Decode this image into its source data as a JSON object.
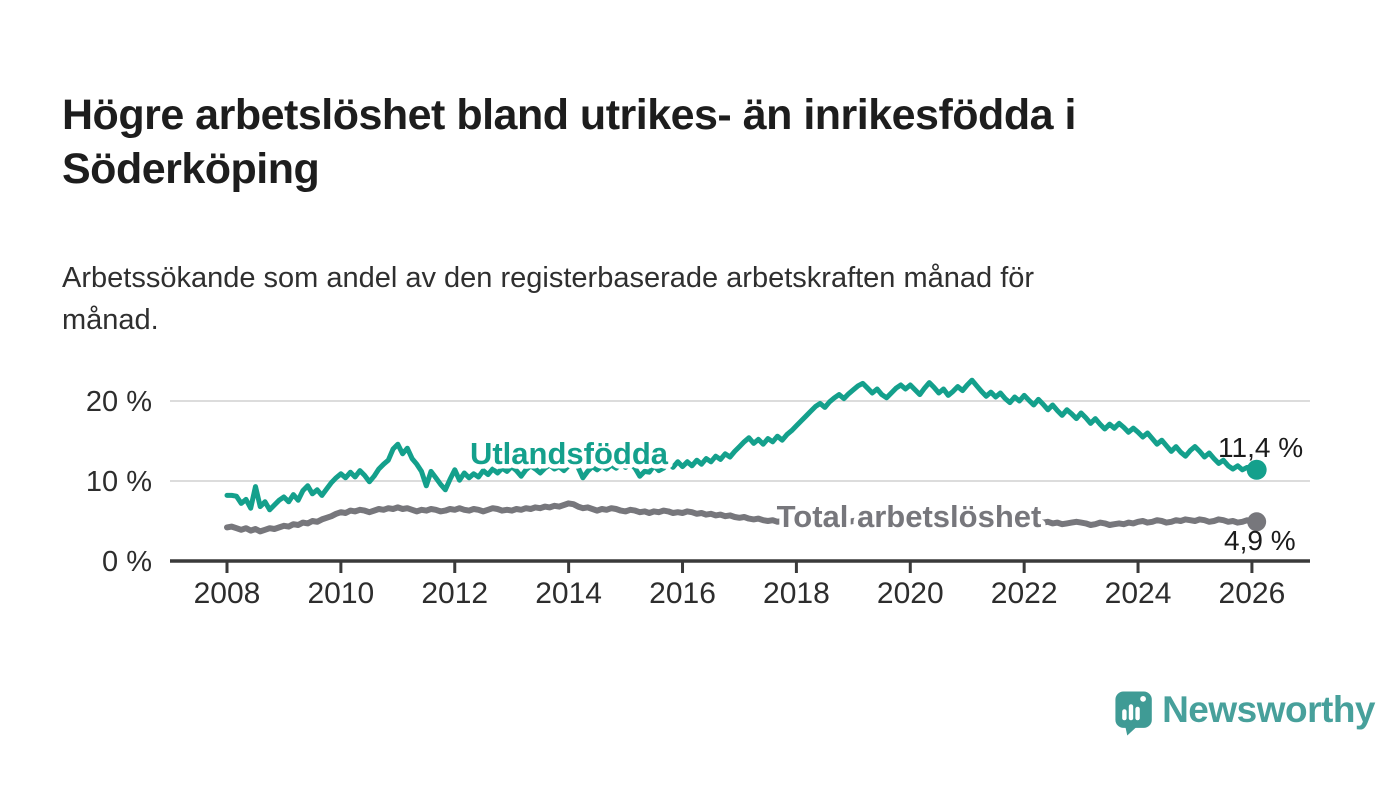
{
  "title": "Högre arbetslöshet bland utrikes- än inrikesfödda i\nSöderköping",
  "subtitle": "Arbetssökande som andel av den registerbaserade arbetskraften månad för\nmånad.",
  "branding": {
    "name": "Newsworthy",
    "icon": "newsworthy-bubble-barchart-icon",
    "icon_color": "#3f9b95",
    "text_color": "#47a09b"
  },
  "chart_data": {
    "type": "line",
    "title": "Högre arbetslöshet bland utrikes- än inrikesfödda i Söderköping",
    "subtitle": "Arbetssökande som andel av den registerbaserade arbetskraften månad för månad.",
    "x_unit": "month",
    "x_start": "2008-01",
    "x_end": "2026-02",
    "x_tick_labels": [
      "2008",
      "2010",
      "2012",
      "2014",
      "2016",
      "2018",
      "2020",
      "2022",
      "2024",
      "2026"
    ],
    "y_tick_labels": [
      "0 %",
      "10 %",
      "20 %"
    ],
    "y_ticks": [
      0,
      10,
      20
    ],
    "ylim": [
      0,
      25
    ],
    "grid": "horizontal",
    "legend": "inline-labels",
    "axis_color": "#3a3a3a",
    "grid_color": "#dcdcdc",
    "tick_text_color": "#2d2d2d",
    "value_label_color": "#1b1b1b",
    "series": [
      {
        "name": "Utlandsfödda",
        "color": "#14a08c",
        "end_value": 11.4,
        "end_label": "11,4 %",
        "values": [
          8.2,
          8.2,
          8.1,
          7.2,
          7.7,
          6.6,
          9.3,
          6.8,
          7.4,
          6.4,
          7.0,
          7.6,
          8.0,
          7.4,
          8.3,
          7.6,
          8.8,
          9.4,
          8.4,
          8.9,
          8.2,
          9.0,
          9.8,
          10.4,
          10.9,
          10.4,
          11.1,
          10.5,
          11.3,
          10.7,
          9.9,
          10.6,
          11.5,
          12.1,
          12.6,
          14.0,
          14.6,
          13.4,
          14.1,
          12.8,
          12.1,
          11.2,
          9.4,
          11.2,
          10.4,
          9.6,
          8.9,
          10.2,
          11.4,
          10.1,
          11.0,
          10.4,
          10.9,
          10.5,
          11.3,
          10.8,
          11.5,
          11.0,
          11.6,
          11.2,
          11.8,
          11.3,
          10.6,
          11.4,
          11.9,
          11.5,
          11.0,
          11.6,
          12.0,
          11.5,
          11.8,
          11.3,
          11.9,
          12.3,
          11.7,
          10.4,
          11.2,
          11.8,
          11.4,
          11.9,
          11.5,
          12.0,
          11.6,
          12.1,
          11.7,
          12.2,
          11.6,
          10.6,
          11.2,
          11.1,
          11.9,
          11.3,
          11.6,
          12.3,
          11.7,
          12.4,
          11.8,
          12.4,
          11.9,
          12.6,
          12.1,
          12.8,
          12.4,
          13.1,
          12.7,
          13.4,
          13.0,
          13.7,
          14.3,
          14.9,
          15.4,
          14.7,
          15.2,
          14.6,
          15.3,
          14.9,
          15.6,
          15.1,
          15.8,
          16.3,
          16.9,
          17.5,
          18.1,
          18.7,
          19.3,
          19.7,
          19.2,
          19.9,
          20.4,
          20.8,
          20.3,
          20.9,
          21.4,
          21.9,
          22.2,
          21.6,
          21.0,
          21.5,
          20.8,
          20.4,
          21.0,
          21.6,
          22.0,
          21.5,
          22.0,
          21.4,
          20.8,
          21.6,
          22.3,
          21.7,
          21.0,
          21.5,
          20.7,
          21.2,
          21.8,
          21.3,
          22.0,
          22.6,
          21.9,
          21.2,
          20.6,
          21.1,
          20.5,
          21.0,
          20.3,
          19.8,
          20.5,
          20.0,
          20.7,
          20.1,
          19.5,
          20.2,
          19.6,
          18.9,
          19.5,
          18.8,
          18.2,
          18.9,
          18.4,
          17.8,
          18.5,
          17.9,
          17.2,
          17.8,
          17.1,
          16.5,
          17.1,
          16.6,
          17.2,
          16.7,
          16.1,
          16.6,
          16.1,
          15.5,
          16.0,
          15.3,
          14.6,
          15.1,
          14.4,
          13.7,
          14.3,
          13.6,
          13.1,
          13.8,
          14.3,
          13.7,
          13.0,
          13.5,
          12.8,
          12.2,
          12.6,
          11.9,
          11.5,
          11.9,
          11.4,
          11.7,
          11.2,
          11.4
        ]
      },
      {
        "name": "Total arbetslöshet",
        "color": "#77777c",
        "end_value": 4.9,
        "end_label": "4,9 %",
        "values": [
          4.2,
          4.3,
          4.1,
          3.9,
          4.1,
          3.8,
          4.0,
          3.7,
          3.9,
          4.1,
          4.0,
          4.2,
          4.4,
          4.3,
          4.6,
          4.5,
          4.8,
          4.7,
          5.0,
          4.9,
          5.2,
          5.4,
          5.6,
          5.9,
          6.1,
          6.0,
          6.3,
          6.2,
          6.4,
          6.3,
          6.1,
          6.3,
          6.5,
          6.4,
          6.6,
          6.5,
          6.7,
          6.5,
          6.6,
          6.4,
          6.2,
          6.4,
          6.3,
          6.5,
          6.4,
          6.2,
          6.3,
          6.5,
          6.4,
          6.6,
          6.4,
          6.3,
          6.5,
          6.4,
          6.2,
          6.4,
          6.6,
          6.5,
          6.3,
          6.4,
          6.3,
          6.5,
          6.4,
          6.6,
          6.5,
          6.7,
          6.6,
          6.8,
          6.7,
          6.9,
          6.8,
          7.0,
          7.2,
          7.1,
          6.8,
          6.6,
          6.7,
          6.5,
          6.3,
          6.5,
          6.4,
          6.6,
          6.5,
          6.3,
          6.2,
          6.4,
          6.3,
          6.1,
          6.2,
          6.0,
          6.2,
          6.1,
          6.3,
          6.2,
          6.0,
          6.1,
          6.0,
          6.2,
          6.1,
          5.9,
          6.0,
          5.8,
          5.9,
          5.7,
          5.8,
          5.6,
          5.7,
          5.5,
          5.4,
          5.5,
          5.3,
          5.2,
          5.3,
          5.1,
          5.0,
          5.1,
          4.9,
          5.0,
          4.8,
          4.9,
          5.0,
          4.9,
          5.1,
          5.0,
          4.8,
          4.9,
          5.1,
          5.0,
          4.8,
          4.9,
          5.0,
          4.9,
          5.0,
          5.1,
          5.0,
          4.8,
          4.9,
          5.0,
          4.9,
          4.7,
          4.8,
          5.0,
          4.9,
          5.1,
          5.2,
          5.1,
          5.0,
          5.3,
          5.5,
          5.4,
          5.2,
          5.3,
          5.1,
          5.2,
          5.0,
          5.1,
          5.2,
          5.3,
          5.1,
          5.0,
          4.9,
          5.0,
          5.1,
          4.9,
          4.8,
          4.9,
          5.0,
          4.9,
          5.0,
          4.9,
          5.1,
          4.9,
          4.8,
          4.9,
          4.7,
          4.8,
          4.6,
          4.7,
          4.8,
          4.9,
          4.8,
          4.7,
          4.5,
          4.6,
          4.8,
          4.7,
          4.5,
          4.6,
          4.7,
          4.6,
          4.8,
          4.7,
          4.9,
          5.0,
          4.8,
          4.9,
          5.1,
          5.0,
          4.8,
          4.9,
          5.1,
          5.0,
          5.2,
          5.1,
          5.0,
          5.2,
          5.1,
          4.9,
          5.0,
          5.2,
          5.1,
          4.9,
          5.0,
          4.8,
          4.9,
          5.1,
          4.8,
          4.9
        ]
      }
    ]
  }
}
